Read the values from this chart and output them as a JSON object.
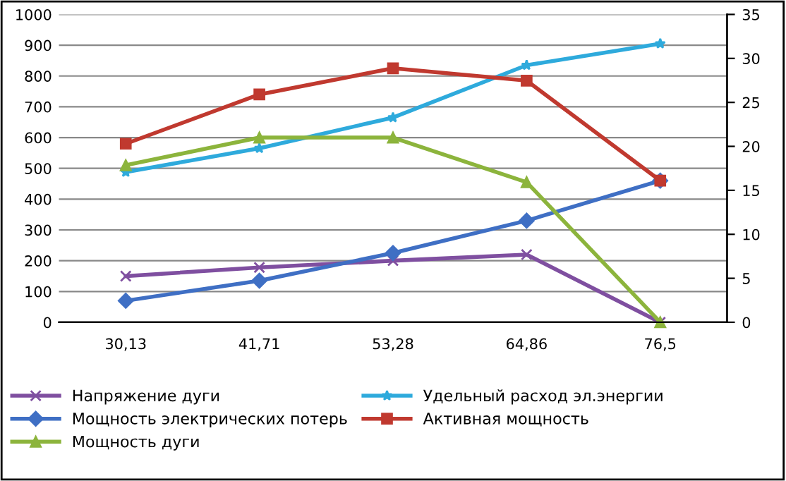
{
  "chart_data": {
    "type": "line",
    "categories": [
      "30,13",
      "41,71",
      "53,28",
      "64,86",
      "76,5"
    ],
    "series": [
      {
        "name": "Напряжение дуги",
        "color": "#7f4fa0",
        "marker": "cross",
        "values": [
          150,
          178,
          200,
          220,
          0
        ]
      },
      {
        "name": "Удельный расход эл.энергии",
        "color": "#2eaadc",
        "marker": "star",
        "values": [
          488,
          565,
          665,
          835,
          905
        ]
      },
      {
        "name": "Мощность электрических потерь",
        "color": "#3f6fc4",
        "marker": "diamond",
        "values": [
          70,
          135,
          225,
          330,
          460
        ]
      },
      {
        "name": "Активная мощность",
        "color": "#c0392f",
        "marker": "square",
        "values": [
          580,
          740,
          825,
          785,
          460
        ]
      },
      {
        "name": "Мощность дуги",
        "color": "#8cb43c",
        "marker": "triangle",
        "values": [
          510,
          600,
          600,
          455,
          0
        ]
      }
    ],
    "ylim": [
      0,
      1000
    ],
    "yticks": [
      0,
      100,
      200,
      300,
      400,
      500,
      600,
      700,
      800,
      900,
      1000
    ],
    "y2lim": [
      0,
      35
    ],
    "y2ticks": [
      0,
      5,
      10,
      15,
      20,
      25,
      30,
      35
    ],
    "grid": "y",
    "legend": "bottom",
    "line_style": "solid"
  }
}
